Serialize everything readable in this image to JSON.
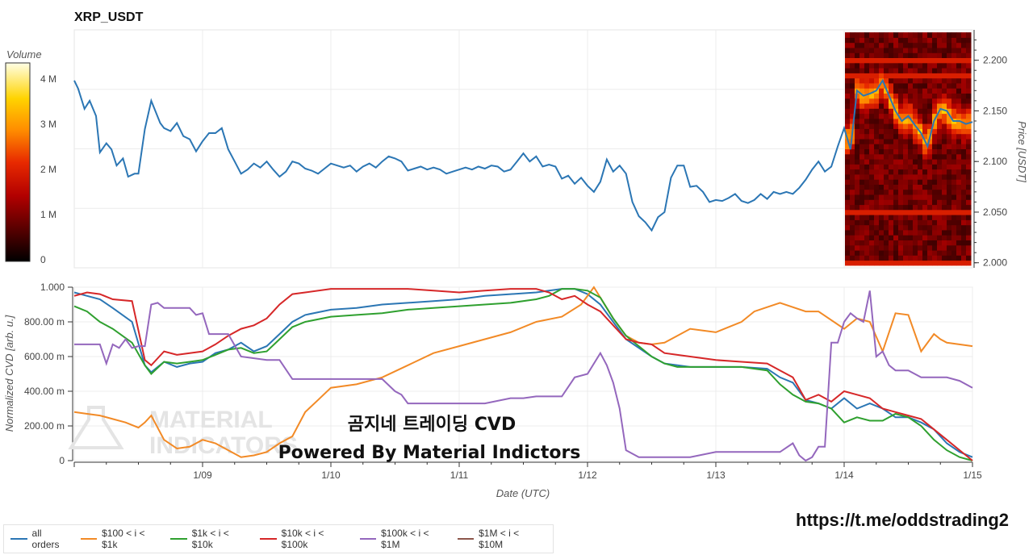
{
  "chart_data": [
    {
      "type": "line+heatmap",
      "title": "XRP_USDT",
      "ylabel": "Price [USDT]",
      "ylim": [
        1.995,
        2.23
      ],
      "yticks": [
        "2.000",
        "2.050",
        "2.100",
        "2.150",
        "2.200"
      ],
      "colorbar_label": "Volume",
      "colorbar_ticks": [
        "0",
        "1 M",
        "2 M",
        "3 M",
        "4 M"
      ],
      "colorbar_max": 4.5,
      "x_days_range": [
        0,
        7
      ],
      "price": {
        "name": "price",
        "color": "#2b76b4",
        "x": [
          0,
          0.03,
          0.08,
          0.12,
          0.17,
          0.2,
          0.25,
          0.29,
          0.33,
          0.38,
          0.42,
          0.47,
          0.5,
          0.55,
          0.6,
          0.67,
          0.7,
          0.75,
          0.8,
          0.85,
          0.9,
          0.95,
          1.0,
          1.05,
          1.1,
          1.15,
          1.2,
          1.25,
          1.3,
          1.35,
          1.4,
          1.45,
          1.5,
          1.55,
          1.6,
          1.65,
          1.7,
          1.75,
          1.8,
          1.85,
          1.9,
          1.95,
          2.0,
          2.05,
          2.1,
          2.15,
          2.2,
          2.25,
          2.3,
          2.35,
          2.4,
          2.45,
          2.5,
          2.55,
          2.6,
          2.65,
          2.7,
          2.75,
          2.8,
          2.85,
          2.9,
          2.95,
          3.0,
          3.05,
          3.1,
          3.15,
          3.2,
          3.25,
          3.3,
          3.35,
          3.4,
          3.45,
          3.5,
          3.55,
          3.6,
          3.65,
          3.7,
          3.75,
          3.8,
          3.85,
          3.9,
          3.95,
          4.0,
          4.05,
          4.1,
          4.15,
          4.2,
          4.25,
          4.3,
          4.35,
          4.4,
          4.45,
          4.5,
          4.55,
          4.6,
          4.65,
          4.7,
          4.75,
          4.8,
          4.85,
          4.9,
          4.95,
          5.0,
          5.05,
          5.1,
          5.15,
          5.2,
          5.25,
          5.3,
          5.35,
          5.4,
          5.45,
          5.5,
          5.55,
          5.6,
          5.65,
          5.7,
          5.75,
          5.8,
          5.85,
          5.9,
          5.95,
          6.0,
          6.05,
          6.1,
          6.15,
          6.2,
          6.25,
          6.3,
          6.35,
          6.4,
          6.45,
          6.5,
          6.55,
          6.6,
          6.65,
          6.7,
          6.75,
          6.8,
          6.85,
          6.9,
          6.95,
          7.0
        ],
        "y": [
          2.18,
          2.172,
          2.152,
          2.16,
          2.145,
          2.109,
          2.118,
          2.112,
          2.096,
          2.103,
          2.085,
          2.088,
          2.088,
          2.132,
          2.16,
          2.138,
          2.133,
          2.13,
          2.138,
          2.125,
          2.122,
          2.11,
          2.12,
          2.128,
          2.128,
          2.133,
          2.112,
          2.1,
          2.088,
          2.092,
          2.098,
          2.094,
          2.1,
          2.092,
          2.085,
          2.09,
          2.1,
          2.098,
          2.093,
          2.091,
          2.088,
          2.093,
          2.098,
          2.096,
          2.094,
          2.096,
          2.09,
          2.095,
          2.098,
          2.094,
          2.1,
          2.105,
          2.103,
          2.1,
          2.091,
          2.093,
          2.095,
          2.092,
          2.094,
          2.092,
          2.088,
          2.09,
          2.092,
          2.094,
          2.092,
          2.095,
          2.093,
          2.096,
          2.095,
          2.09,
          2.092,
          2.1,
          2.108,
          2.1,
          2.105,
          2.095,
          2.097,
          2.095,
          2.083,
          2.086,
          2.078,
          2.084,
          2.076,
          2.07,
          2.08,
          2.102,
          2.09,
          2.096,
          2.088,
          2.06,
          2.046,
          2.04,
          2.032,
          2.045,
          2.05,
          2.084,
          2.096,
          2.096,
          2.075,
          2.076,
          2.07,
          2.06,
          2.062,
          2.061,
          2.064,
          2.068,
          2.061,
          2.059,
          2.062,
          2.068,
          2.063,
          2.07,
          2.068,
          2.07,
          2.068,
          2.074,
          2.082,
          2.092,
          2.1,
          2.09,
          2.095,
          2.115,
          2.133,
          2.112,
          2.17,
          2.165,
          2.167,
          2.17,
          2.18,
          2.165,
          2.15,
          2.14,
          2.145,
          2.136,
          2.128,
          2.115,
          2.14,
          2.152,
          2.15,
          2.14,
          2.14,
          2.137,
          2.139,
          2.135,
          2.136
        ]
      },
      "heatmap_levels": [
        2.0,
        2.005,
        2.01,
        2.015,
        2.02,
        2.025,
        2.03,
        2.035,
        2.04,
        2.045,
        2.05,
        2.055,
        2.06,
        2.065,
        2.07,
        2.075,
        2.08,
        2.085,
        2.09,
        2.095,
        2.1,
        2.105,
        2.11,
        2.115,
        2.12,
        2.125,
        2.13,
        2.135,
        2.14,
        2.145,
        2.15,
        2.155,
        2.16,
        2.165,
        2.17,
        2.175,
        2.18,
        2.185,
        2.19,
        2.195,
        2.2,
        2.205,
        2.21,
        2.215,
        2.22,
        2.225
      ]
    },
    {
      "type": "line",
      "ylabel": "Normalized CVD [arb. u.]",
      "xlabel": "Date (UTC)",
      "ylim": [
        0,
        1
      ],
      "yticks": [
        "0",
        "200.00 m",
        "400.00 m",
        "600.00 m",
        "800.00 m",
        "1.000"
      ],
      "x_ticks": [
        "1/09",
        "1/10",
        "1/11",
        "1/12",
        "1/13",
        "1/14",
        "1/15"
      ],
      "x_tick_days": [
        1,
        2,
        3,
        4,
        5,
        6,
        7
      ],
      "series": [
        {
          "name": "all orders",
          "color": "#2b76b4",
          "x": [
            0,
            0.1,
            0.2,
            0.3,
            0.45,
            0.55,
            0.6,
            0.7,
            0.8,
            0.9,
            1.0,
            1.1,
            1.2,
            1.3,
            1.4,
            1.5,
            1.6,
            1.7,
            1.8,
            2.0,
            2.2,
            2.4,
            2.6,
            2.8,
            3.0,
            3.2,
            3.4,
            3.6,
            3.7,
            3.8,
            3.9,
            4.0,
            4.1,
            4.2,
            4.3,
            4.4,
            4.5,
            4.6,
            4.7,
            4.8,
            4.9,
            5.0,
            5.2,
            5.4,
            5.5,
            5.6,
            5.7,
            5.8,
            5.9,
            6.0,
            6.1,
            6.2,
            6.3,
            6.4,
            6.5,
            6.6,
            6.7,
            6.8,
            6.9,
            7.0
          ],
          "y": [
            0.97,
            0.95,
            0.93,
            0.88,
            0.8,
            0.55,
            0.51,
            0.57,
            0.54,
            0.56,
            0.57,
            0.62,
            0.64,
            0.68,
            0.63,
            0.66,
            0.73,
            0.8,
            0.84,
            0.87,
            0.88,
            0.9,
            0.91,
            0.92,
            0.93,
            0.95,
            0.96,
            0.97,
            0.98,
            0.99,
            0.99,
            0.96,
            0.9,
            0.8,
            0.7,
            0.65,
            0.6,
            0.56,
            0.55,
            0.54,
            0.54,
            0.54,
            0.54,
            0.53,
            0.48,
            0.45,
            0.35,
            0.33,
            0.3,
            0.36,
            0.3,
            0.33,
            0.3,
            0.25,
            0.25,
            0.22,
            0.18,
            0.1,
            0.05,
            0.02
          ]
        },
        {
          "name": "$100 < i < $1k",
          "color": "#f28a26",
          "x": [
            0,
            0.1,
            0.2,
            0.3,
            0.4,
            0.5,
            0.55,
            0.6,
            0.7,
            0.8,
            0.9,
            1.0,
            1.1,
            1.2,
            1.3,
            1.4,
            1.5,
            1.6,
            1.7,
            1.8,
            1.9,
            2.0,
            2.2,
            2.4,
            2.6,
            2.8,
            3.0,
            3.2,
            3.4,
            3.6,
            3.8,
            3.95,
            4.05,
            4.1,
            4.2,
            4.3,
            4.4,
            4.5,
            4.6,
            4.7,
            4.8,
            4.9,
            5.0,
            5.1,
            5.2,
            5.3,
            5.5,
            5.7,
            5.8,
            6.0,
            6.1,
            6.2,
            6.3,
            6.4,
            6.5,
            6.6,
            6.7,
            6.75,
            6.8,
            7.0
          ],
          "y": [
            0.28,
            0.27,
            0.26,
            0.24,
            0.22,
            0.19,
            0.22,
            0.26,
            0.12,
            0.07,
            0.08,
            0.12,
            0.1,
            0.06,
            0.02,
            0.03,
            0.05,
            0.1,
            0.14,
            0.28,
            0.35,
            0.42,
            0.44,
            0.48,
            0.55,
            0.62,
            0.66,
            0.7,
            0.74,
            0.8,
            0.83,
            0.9,
            1.0,
            0.94,
            0.82,
            0.72,
            0.68,
            0.67,
            0.68,
            0.72,
            0.76,
            0.75,
            0.74,
            0.77,
            0.8,
            0.86,
            0.91,
            0.86,
            0.86,
            0.76,
            0.82,
            0.8,
            0.63,
            0.85,
            0.84,
            0.63,
            0.73,
            0.7,
            0.68,
            0.66
          ]
        },
        {
          "name": "$1k < i < $10k",
          "color": "#2fa02f",
          "x": [
            0,
            0.1,
            0.2,
            0.3,
            0.45,
            0.55,
            0.6,
            0.7,
            0.8,
            0.9,
            1.0,
            1.1,
            1.2,
            1.3,
            1.4,
            1.5,
            1.6,
            1.7,
            1.8,
            2.0,
            2.2,
            2.4,
            2.6,
            2.8,
            3.0,
            3.2,
            3.4,
            3.6,
            3.7,
            3.8,
            3.9,
            4.0,
            4.1,
            4.2,
            4.3,
            4.4,
            4.5,
            4.6,
            4.7,
            4.8,
            4.9,
            5.0,
            5.2,
            5.4,
            5.5,
            5.6,
            5.7,
            5.8,
            5.9,
            6.0,
            6.1,
            6.2,
            6.3,
            6.4,
            6.5,
            6.6,
            6.7,
            6.8,
            6.9,
            7.0
          ],
          "y": [
            0.89,
            0.86,
            0.8,
            0.76,
            0.68,
            0.55,
            0.5,
            0.57,
            0.56,
            0.57,
            0.58,
            0.61,
            0.64,
            0.65,
            0.62,
            0.63,
            0.7,
            0.77,
            0.8,
            0.83,
            0.84,
            0.85,
            0.87,
            0.88,
            0.89,
            0.9,
            0.91,
            0.93,
            0.95,
            0.99,
            0.99,
            0.98,
            0.94,
            0.82,
            0.72,
            0.66,
            0.6,
            0.56,
            0.54,
            0.54,
            0.54,
            0.54,
            0.54,
            0.52,
            0.44,
            0.38,
            0.34,
            0.33,
            0.3,
            0.22,
            0.25,
            0.23,
            0.23,
            0.27,
            0.25,
            0.2,
            0.12,
            0.06,
            0.02,
            0.0
          ]
        },
        {
          "name": "$10k < i < $100k",
          "color": "#d62728",
          "x": [
            0,
            0.1,
            0.2,
            0.3,
            0.45,
            0.55,
            0.6,
            0.7,
            0.8,
            0.9,
            1.0,
            1.1,
            1.2,
            1.3,
            1.4,
            1.5,
            1.6,
            1.7,
            1.8,
            2.0,
            2.2,
            2.4,
            2.6,
            2.8,
            3.0,
            3.2,
            3.4,
            3.6,
            3.7,
            3.8,
            3.9,
            4.0,
            4.1,
            4.2,
            4.3,
            4.4,
            4.5,
            4.6,
            4.7,
            4.8,
            4.9,
            5.0,
            5.2,
            5.4,
            5.5,
            5.6,
            5.7,
            5.8,
            5.9,
            6.0,
            6.1,
            6.2,
            6.3,
            6.4,
            6.5,
            6.6,
            6.7,
            6.8,
            6.9,
            7.0
          ],
          "y": [
            0.95,
            0.97,
            0.96,
            0.93,
            0.92,
            0.58,
            0.55,
            0.63,
            0.61,
            0.62,
            0.63,
            0.67,
            0.72,
            0.76,
            0.78,
            0.82,
            0.9,
            0.96,
            0.97,
            0.99,
            0.99,
            0.99,
            0.99,
            0.98,
            0.97,
            0.98,
            0.99,
            0.99,
            0.97,
            0.93,
            0.95,
            0.9,
            0.86,
            0.78,
            0.7,
            0.68,
            0.67,
            0.62,
            0.61,
            0.6,
            0.59,
            0.58,
            0.57,
            0.56,
            0.52,
            0.48,
            0.35,
            0.38,
            0.34,
            0.4,
            0.38,
            0.36,
            0.3,
            0.28,
            0.26,
            0.24,
            0.18,
            0.12,
            0.06,
            0.0
          ]
        },
        {
          "name": "$100k < i < $1M",
          "color": "#9467bd",
          "x": [
            0,
            0.1,
            0.2,
            0.25,
            0.3,
            0.35,
            0.4,
            0.45,
            0.5,
            0.55,
            0.6,
            0.65,
            0.7,
            0.8,
            0.9,
            0.95,
            1.0,
            1.05,
            1.1,
            1.2,
            1.3,
            1.5,
            1.6,
            1.7,
            2.0,
            2.2,
            2.4,
            2.5,
            2.55,
            2.6,
            2.8,
            3.0,
            3.2,
            3.4,
            3.5,
            3.6,
            3.7,
            3.8,
            3.9,
            4.0,
            4.1,
            4.15,
            4.2,
            4.25,
            4.3,
            4.4,
            4.6,
            4.8,
            5.0,
            5.2,
            5.4,
            5.5,
            5.6,
            5.65,
            5.7,
            5.75,
            5.8,
            5.85,
            5.9,
            5.95,
            6.0,
            6.05,
            6.1,
            6.15,
            6.2,
            6.25,
            6.3,
            6.35,
            6.4,
            6.5,
            6.6,
            6.7,
            6.8,
            6.9,
            7.0
          ],
          "y": [
            0.67,
            0.67,
            0.67,
            0.56,
            0.67,
            0.65,
            0.7,
            0.65,
            0.66,
            0.66,
            0.9,
            0.91,
            0.88,
            0.88,
            0.88,
            0.84,
            0.85,
            0.73,
            0.73,
            0.73,
            0.6,
            0.58,
            0.58,
            0.47,
            0.47,
            0.47,
            0.47,
            0.4,
            0.38,
            0.33,
            0.33,
            0.33,
            0.33,
            0.36,
            0.36,
            0.37,
            0.37,
            0.37,
            0.48,
            0.5,
            0.62,
            0.55,
            0.45,
            0.3,
            0.06,
            0.02,
            0.02,
            0.02,
            0.05,
            0.05,
            0.05,
            0.05,
            0.1,
            0.03,
            0.0,
            0.02,
            0.08,
            0.08,
            0.68,
            0.68,
            0.8,
            0.85,
            0.82,
            0.8,
            0.98,
            0.6,
            0.63,
            0.55,
            0.52,
            0.52,
            0.48,
            0.48,
            0.48,
            0.46,
            0.42
          ]
        },
        {
          "name": "$1M < i < $10M",
          "color": "#8c564b",
          "x": [],
          "y": []
        }
      ]
    }
  ],
  "overlay": {
    "line1": "곰지네 트레이딩 CVD",
    "line2": "Powered By Material Indictors"
  },
  "watermark": {
    "line1": "MATERIAL",
    "line2": "INDICATORS"
  },
  "url": "https://t.me/oddstrading2"
}
